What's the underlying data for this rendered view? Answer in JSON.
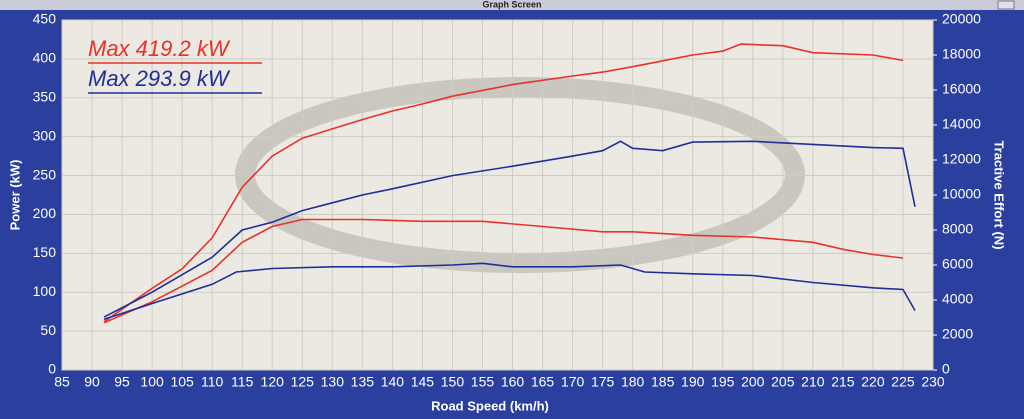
{
  "chart_data": {
    "type": "line",
    "title": "Graph Screen",
    "xlabel": "Road Speed (km/h)",
    "ylabel": "Power (kW)",
    "y2label": "Tractive Effort (N)",
    "annotations": [
      {
        "text": "Max 419.2 kW",
        "color": "#e8322a"
      },
      {
        "text": "Max 293.9 kW",
        "color": "#1f2f9a"
      }
    ],
    "xlim": [
      85,
      230
    ],
    "xticks": [
      85,
      90,
      95,
      100,
      105,
      110,
      115,
      120,
      125,
      130,
      135,
      140,
      145,
      150,
      155,
      160,
      165,
      170,
      175,
      180,
      185,
      190,
      195,
      200,
      205,
      210,
      215,
      220,
      225,
      230
    ],
    "ylim": [
      0,
      450
    ],
    "yticks": [
      0,
      50,
      100,
      150,
      200,
      250,
      300,
      350,
      400,
      450
    ],
    "y2lim": [
      0,
      20000
    ],
    "y2ticks": [
      0,
      2000,
      4000,
      6000,
      8000,
      10000,
      12000,
      14000,
      16000,
      18000,
      20000
    ],
    "grid": true,
    "series": [
      {
        "color": "#e8322a",
        "axis": "y",
        "x": [
          92,
          100,
          105,
          110,
          115,
          120,
          125,
          130,
          135,
          140,
          145,
          150,
          160,
          170,
          175,
          180,
          190,
          195,
          198,
          205,
          210,
          220,
          225
        ],
        "values": [
          62,
          105,
          130,
          170,
          235,
          275,
          298,
          310,
          322,
          333,
          342,
          352,
          367,
          378,
          383,
          390,
          405,
          410,
          419,
          417,
          408,
          405,
          398
        ]
      },
      {
        "color": "#1f2f9a",
        "axis": "y",
        "x": [
          92,
          100,
          110,
          115,
          120,
          125,
          130,
          135,
          140,
          150,
          160,
          170,
          175,
          178,
          180,
          185,
          190,
          200,
          210,
          220,
          225,
          227
        ],
        "values": [
          68,
          100,
          145,
          180,
          190,
          205,
          215,
          225,
          233,
          250,
          262,
          275,
          282,
          294,
          285,
          282,
          293,
          294,
          290,
          286,
          285,
          210
        ]
      },
      {
        "color": "#e8322a",
        "axis": "y2",
        "x": [
          92,
          100,
          110,
          115,
          120,
          125,
          135,
          145,
          155,
          165,
          175,
          180,
          190,
          200,
          210,
          215,
          220,
          225
        ],
        "values": [
          2700,
          3900,
          5700,
          7300,
          8200,
          8600,
          8600,
          8500,
          8500,
          8200,
          7900,
          7900,
          7700,
          7600,
          7300,
          6900,
          6600,
          6400
        ]
      },
      {
        "color": "#1f2f9a",
        "axis": "y2",
        "x": [
          92,
          100,
          110,
          114,
          120,
          130,
          140,
          150,
          155,
          160,
          170,
          178,
          182,
          190,
          200,
          210,
          220,
          225,
          227
        ],
        "values": [
          2900,
          3800,
          4900,
          5600,
          5800,
          5900,
          5900,
          6000,
          6100,
          5900,
          5900,
          6000,
          5600,
          5500,
          5400,
          5000,
          4700,
          4600,
          3400
        ]
      }
    ]
  }
}
